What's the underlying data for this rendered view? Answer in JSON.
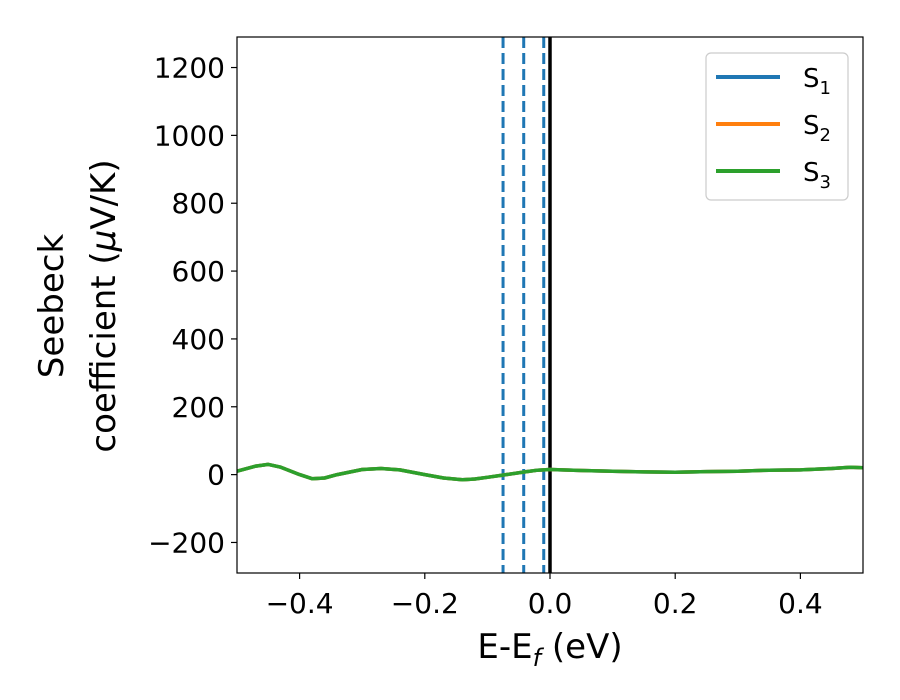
{
  "chart_data": {
    "type": "line",
    "xlabel": {
      "main": "E-E",
      "sub": "f",
      "tail": " (eV)"
    },
    "ylabel": {
      "line1": "Seebeck",
      "line2": "coefficient  (",
      "mu": "μ",
      "tail": "V/K)"
    },
    "xlim": [
      -0.5,
      0.5
    ],
    "ylim": [
      -290,
      1290
    ],
    "xticks": [
      -0.4,
      -0.2,
      0.0,
      0.2,
      0.4
    ],
    "xtick_labels": [
      "−0.4",
      "−0.2",
      "0.0",
      "0.2",
      "0.4"
    ],
    "yticks": [
      -200,
      0,
      200,
      400,
      600,
      800,
      1000,
      1200
    ],
    "ytick_labels": [
      "−200",
      "0",
      "200",
      "400",
      "600",
      "800",
      "1000",
      "1200"
    ],
    "grid": false,
    "legend_position": "top-right",
    "series": [
      {
        "name": "S",
        "sub": "1",
        "color": "#1f77b4",
        "x": [
          -0.5,
          -0.47,
          -0.45,
          -0.43,
          -0.4,
          -0.38,
          -0.36,
          -0.34,
          -0.3,
          -0.27,
          -0.24,
          -0.2,
          -0.17,
          -0.14,
          -0.12,
          -0.1,
          -0.07,
          -0.04,
          -0.02,
          0.0,
          0.05,
          0.1,
          0.15,
          0.2,
          0.25,
          0.3,
          0.35,
          0.4,
          0.45,
          0.48,
          0.5
        ],
        "y": [
          10,
          25,
          30,
          22,
          0,
          -12,
          -10,
          0,
          15,
          18,
          14,
          0,
          -10,
          -15,
          -13,
          -8,
          0,
          8,
          13,
          15,
          12,
          10,
          8,
          7,
          9,
          10,
          13,
          14,
          18,
          22,
          20
        ]
      },
      {
        "name": "S",
        "sub": "2",
        "color": "#ff7f0e",
        "x": [
          -0.5,
          -0.47,
          -0.45,
          -0.43,
          -0.4,
          -0.38,
          -0.36,
          -0.34,
          -0.3,
          -0.27,
          -0.24,
          -0.2,
          -0.17,
          -0.14,
          -0.12,
          -0.1,
          -0.07,
          -0.04,
          -0.02,
          0.0,
          0.05,
          0.1,
          0.15,
          0.2,
          0.25,
          0.3,
          0.35,
          0.4,
          0.45,
          0.48,
          0.5
        ],
        "y": [
          10,
          25,
          30,
          22,
          0,
          -12,
          -10,
          0,
          15,
          18,
          14,
          0,
          -10,
          -15,
          -13,
          -8,
          0,
          8,
          13,
          15,
          12,
          10,
          8,
          7,
          9,
          10,
          13,
          14,
          18,
          22,
          20
        ]
      },
      {
        "name": "S",
        "sub": "3",
        "color": "#2ca02c",
        "x": [
          -0.5,
          -0.47,
          -0.45,
          -0.43,
          -0.4,
          -0.38,
          -0.36,
          -0.34,
          -0.3,
          -0.27,
          -0.24,
          -0.2,
          -0.17,
          -0.14,
          -0.12,
          -0.1,
          -0.07,
          -0.04,
          -0.02,
          0.0,
          0.05,
          0.1,
          0.15,
          0.2,
          0.25,
          0.3,
          0.35,
          0.4,
          0.45,
          0.48,
          0.5
        ],
        "y": [
          10,
          25,
          30,
          22,
          0,
          -12,
          -10,
          0,
          15,
          18,
          14,
          0,
          -10,
          -15,
          -13,
          -8,
          0,
          8,
          13,
          15,
          12,
          10,
          8,
          7,
          9,
          10,
          13,
          14,
          18,
          22,
          20
        ]
      }
    ],
    "vlines": [
      {
        "x": -0.075,
        "color": "#1f77b4",
        "style": "dashed"
      },
      {
        "x": -0.042,
        "color": "#1f77b4",
        "style": "dashed"
      },
      {
        "x": -0.01,
        "color": "#1f77b4",
        "style": "dashed"
      },
      {
        "x": 0.0,
        "color": "#000000",
        "style": "solid"
      }
    ]
  }
}
